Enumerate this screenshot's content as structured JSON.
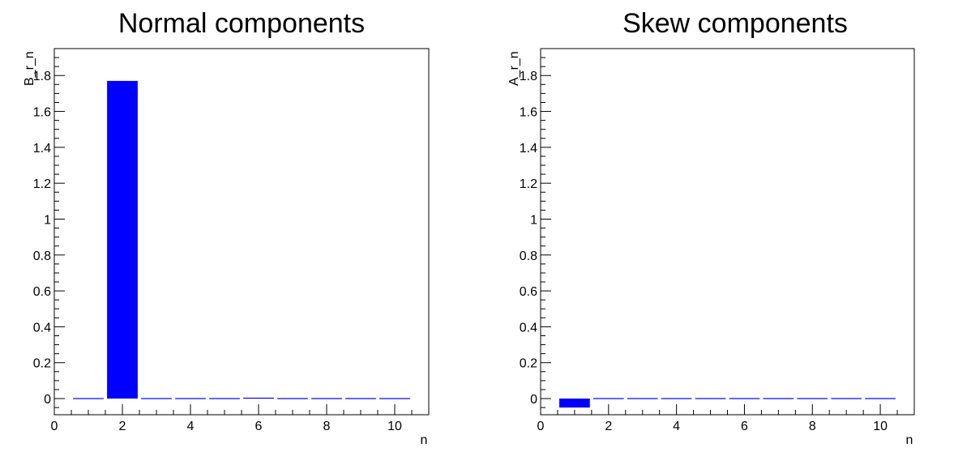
{
  "chart_data": [
    {
      "type": "bar",
      "title": "Normal components",
      "xlabel": "n",
      "ylabel": "B_r_n",
      "xlim": [
        0,
        11
      ],
      "ylim": [
        -0.09,
        1.95
      ],
      "x_ticks": [
        "0",
        "2",
        "4",
        "6",
        "8",
        "10"
      ],
      "y_ticks": [
        "0",
        "0.2",
        "0.4",
        "0.6",
        "0.8",
        "1",
        "1.2",
        "1.4",
        "1.6",
        "1.8"
      ],
      "bar_color": "#0000ff",
      "grid": false,
      "categories": [
        1,
        2,
        3,
        4,
        5,
        6,
        7,
        8,
        9,
        10
      ],
      "values": [
        0,
        1.77,
        0,
        0,
        0,
        0.005,
        0,
        0,
        0,
        0
      ]
    },
    {
      "type": "bar",
      "title": "Skew components",
      "xlabel": "n",
      "ylabel": "A_r_n",
      "xlim": [
        0,
        11
      ],
      "ylim": [
        -0.09,
        1.95
      ],
      "x_ticks": [
        "0",
        "2",
        "4",
        "6",
        "8",
        "10"
      ],
      "y_ticks": [
        "0",
        "0.2",
        "0.4",
        "0.6",
        "0.8",
        "1",
        "1.2",
        "1.4",
        "1.6",
        "1.8"
      ],
      "bar_color": "#0000ff",
      "grid": false,
      "categories": [
        1,
        2,
        3,
        4,
        5,
        6,
        7,
        8,
        9,
        10
      ],
      "values": [
        -0.05,
        0,
        0,
        0,
        0,
        0,
        0,
        0,
        0,
        0
      ]
    }
  ]
}
